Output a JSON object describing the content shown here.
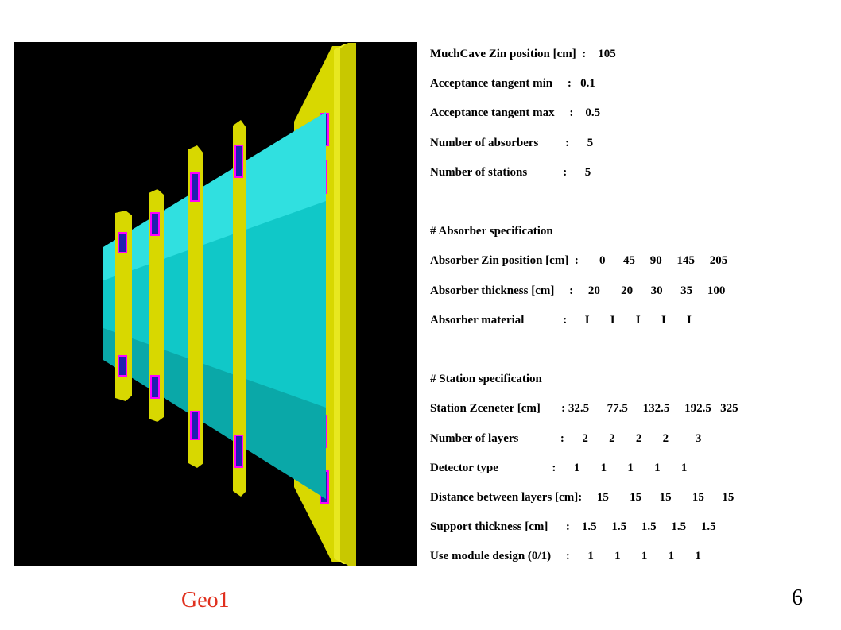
{
  "parameters": [
    "MuchCave Zin position [cm]  :    105",
    "Acceptance tangent min     :   0.1",
    "Acceptance tangent max     :    0.5",
    "Number of absorbers         :      5",
    "Number of stations            :      5"
  ],
  "absorber": {
    "heading": "# Absorber specification",
    "lines": [
      "Absorber Zin position [cm]  :       0      45     90     145     205",
      "Absorber thickness [cm]     :     20       20      30      35     100",
      "Absorber material             :      I       I       I       I       I"
    ]
  },
  "station": {
    "heading": "# Station specification",
    "lines": [
      "Station Zceneter [cm]       : 32.5      77.5     132.5     192.5   325",
      "Number of layers              :      2       2       2       2         3",
      "Detector type                  :      1       1       1       1       1",
      "Distance between layers [cm]:     15       15      15       15      15",
      "Support thickness [cm]      :    1.5     1.5     1.5     1.5     1.5",
      "Use module design (0/1)     :      1       1       1       1       1"
    ]
  },
  "caption": "Geo1",
  "page_number": 6
}
